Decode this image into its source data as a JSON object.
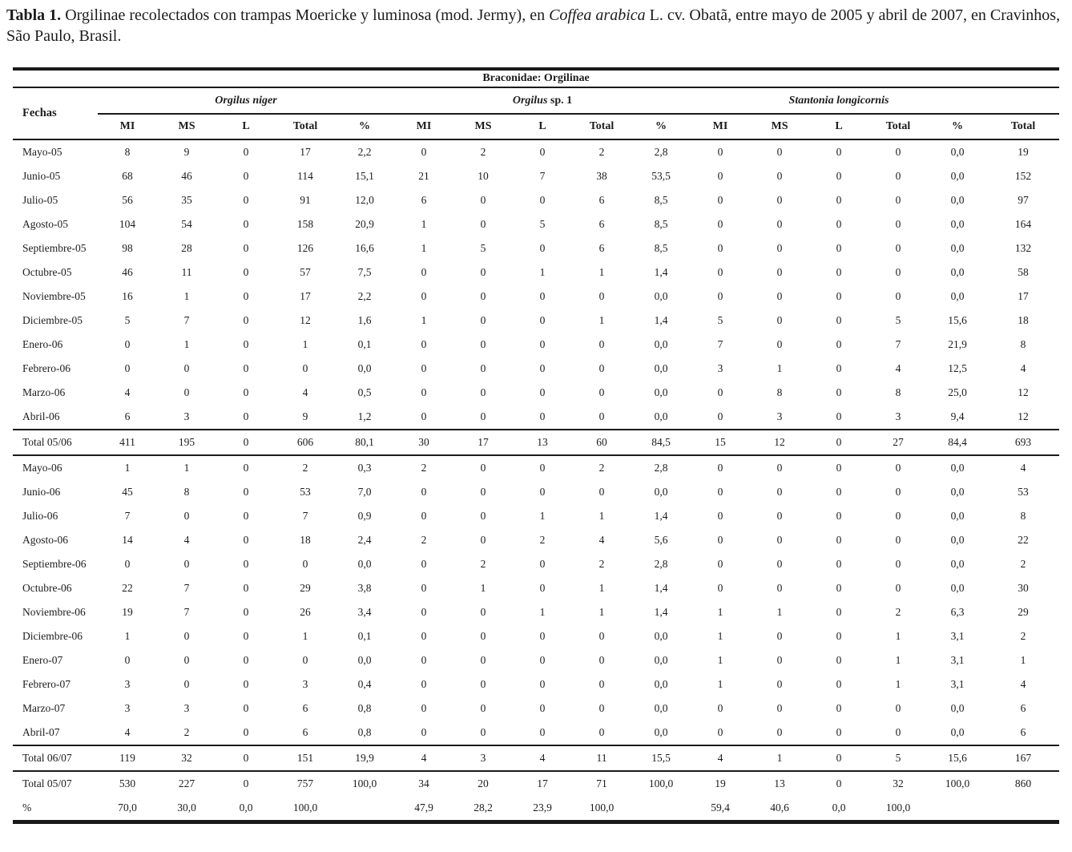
{
  "title": {
    "label": "Tabla 1.",
    "seg1": " Orgilinae recolectados con trampas Moericke y luminosa (mod. Jermy), en ",
    "italic": "Coffea arabica",
    "seg2": " L. cv. Obatã, entre mayo de 2005 y abril de 2007, en Cravinhos, São Paulo, Brasil."
  },
  "table": {
    "family_header": "Braconidae: Orgilinae",
    "fechas_header": "Fechas",
    "groups": [
      {
        "name_italic": "Orgilus niger",
        "name_roman": ""
      },
      {
        "name_italic": "Orgilus",
        "name_roman": " sp. 1"
      },
      {
        "name_italic": "Stantonia longicornis",
        "name_roman": ""
      }
    ],
    "subheaders": [
      "MI",
      "MS",
      "L",
      "Total",
      "%"
    ],
    "total_header": "Total",
    "rows": [
      {
        "label": "Mayo-05",
        "type": "data",
        "values": [
          "8",
          "9",
          "0",
          "17",
          "2,2",
          "0",
          "2",
          "0",
          "2",
          "2,8",
          "0",
          "0",
          "0",
          "0",
          "0,0",
          "19"
        ]
      },
      {
        "label": "Junio-05",
        "type": "data",
        "values": [
          "68",
          "46",
          "0",
          "114",
          "15,1",
          "21",
          "10",
          "7",
          "38",
          "53,5",
          "0",
          "0",
          "0",
          "0",
          "0,0",
          "152"
        ]
      },
      {
        "label": "Julio-05",
        "type": "data",
        "values": [
          "56",
          "35",
          "0",
          "91",
          "12,0",
          "6",
          "0",
          "0",
          "6",
          "8,5",
          "0",
          "0",
          "0",
          "0",
          "0,0",
          "97"
        ]
      },
      {
        "label": "Agosto-05",
        "type": "data",
        "values": [
          "104",
          "54",
          "0",
          "158",
          "20,9",
          "1",
          "0",
          "5",
          "6",
          "8,5",
          "0",
          "0",
          "0",
          "0",
          "0,0",
          "164"
        ]
      },
      {
        "label": "Septiembre-05",
        "type": "data",
        "values": [
          "98",
          "28",
          "0",
          "126",
          "16,6",
          "1",
          "5",
          "0",
          "6",
          "8,5",
          "0",
          "0",
          "0",
          "0",
          "0,0",
          "132"
        ]
      },
      {
        "label": "Octubre-05",
        "type": "data",
        "values": [
          "46",
          "11",
          "0",
          "57",
          "7,5",
          "0",
          "0",
          "1",
          "1",
          "1,4",
          "0",
          "0",
          "0",
          "0",
          "0,0",
          "58"
        ]
      },
      {
        "label": "Noviembre-05",
        "type": "data",
        "values": [
          "16",
          "1",
          "0",
          "17",
          "2,2",
          "0",
          "0",
          "0",
          "0",
          "0,0",
          "0",
          "0",
          "0",
          "0",
          "0,0",
          "17"
        ]
      },
      {
        "label": "Diciembre-05",
        "type": "data",
        "values": [
          "5",
          "7",
          "0",
          "12",
          "1,6",
          "1",
          "0",
          "0",
          "1",
          "1,4",
          "5",
          "0",
          "0",
          "5",
          "15,6",
          "18"
        ]
      },
      {
        "label": "Enero-06",
        "type": "data",
        "values": [
          "0",
          "1",
          "0",
          "1",
          "0,1",
          "0",
          "0",
          "0",
          "0",
          "0,0",
          "7",
          "0",
          "0",
          "7",
          "21,9",
          "8"
        ]
      },
      {
        "label": "Febrero-06",
        "type": "data",
        "values": [
          "0",
          "0",
          "0",
          "0",
          "0,0",
          "0",
          "0",
          "0",
          "0",
          "0,0",
          "3",
          "1",
          "0",
          "4",
          "12,5",
          "4"
        ]
      },
      {
        "label": "Marzo-06",
        "type": "data",
        "values": [
          "4",
          "0",
          "0",
          "4",
          "0,5",
          "0",
          "0",
          "0",
          "0",
          "0,0",
          "0",
          "8",
          "0",
          "8",
          "25,0",
          "12"
        ]
      },
      {
        "label": "Abril-06",
        "type": "data",
        "values": [
          "6",
          "3",
          "0",
          "9",
          "1,2",
          "0",
          "0",
          "0",
          "0",
          "0,0",
          "0",
          "3",
          "0",
          "3",
          "9,4",
          "12"
        ]
      },
      {
        "label": "Total 05/06",
        "type": "subtotal",
        "values": [
          "411",
          "195",
          "0",
          "606",
          "80,1",
          "30",
          "17",
          "13",
          "60",
          "84,5",
          "15",
          "12",
          "0",
          "27",
          "84,4",
          "693"
        ]
      },
      {
        "label": "Mayo-06",
        "type": "data",
        "values": [
          "1",
          "1",
          "0",
          "2",
          "0,3",
          "2",
          "0",
          "0",
          "2",
          "2,8",
          "0",
          "0",
          "0",
          "0",
          "0,0",
          "4"
        ]
      },
      {
        "label": "Junio-06",
        "type": "data",
        "values": [
          "45",
          "8",
          "0",
          "53",
          "7,0",
          "0",
          "0",
          "0",
          "0",
          "0,0",
          "0",
          "0",
          "0",
          "0",
          "0,0",
          "53"
        ]
      },
      {
        "label": "Julio-06",
        "type": "data",
        "values": [
          "7",
          "0",
          "0",
          "7",
          "0,9",
          "0",
          "0",
          "1",
          "1",
          "1,4",
          "0",
          "0",
          "0",
          "0",
          "0,0",
          "8"
        ]
      },
      {
        "label": "Agosto-06",
        "type": "data",
        "values": [
          "14",
          "4",
          "0",
          "18",
          "2,4",
          "2",
          "0",
          "2",
          "4",
          "5,6",
          "0",
          "0",
          "0",
          "0",
          "0,0",
          "22"
        ]
      },
      {
        "label": "Septiembre-06",
        "type": "data",
        "values": [
          "0",
          "0",
          "0",
          "0",
          "0,0",
          "0",
          "2",
          "0",
          "2",
          "2,8",
          "0",
          "0",
          "0",
          "0",
          "0,0",
          "2"
        ]
      },
      {
        "label": "Octubre-06",
        "type": "data",
        "values": [
          "22",
          "7",
          "0",
          "29",
          "3,8",
          "0",
          "1",
          "0",
          "1",
          "1,4",
          "0",
          "0",
          "0",
          "0",
          "0,0",
          "30"
        ]
      },
      {
        "label": "Noviembre-06",
        "type": "data",
        "values": [
          "19",
          "7",
          "0",
          "26",
          "3,4",
          "0",
          "0",
          "1",
          "1",
          "1,4",
          "1",
          "1",
          "0",
          "2",
          "6,3",
          "29"
        ]
      },
      {
        "label": "Diciembre-06",
        "type": "data",
        "values": [
          "1",
          "0",
          "0",
          "1",
          "0,1",
          "0",
          "0",
          "0",
          "0",
          "0,0",
          "1",
          "0",
          "0",
          "1",
          "3,1",
          "2"
        ]
      },
      {
        "label": "Enero-07",
        "type": "data",
        "values": [
          "0",
          "0",
          "0",
          "0",
          "0,0",
          "0",
          "0",
          "0",
          "0",
          "0,0",
          "1",
          "0",
          "0",
          "1",
          "3,1",
          "1"
        ]
      },
      {
        "label": "Febrero-07",
        "type": "data",
        "values": [
          "3",
          "0",
          "0",
          "3",
          "0,4",
          "0",
          "0",
          "0",
          "0",
          "0,0",
          "1",
          "0",
          "0",
          "1",
          "3,1",
          "4"
        ]
      },
      {
        "label": "Marzo-07",
        "type": "data",
        "values": [
          "3",
          "3",
          "0",
          "6",
          "0,8",
          "0",
          "0",
          "0",
          "0",
          "0,0",
          "0",
          "0",
          "0",
          "0",
          "0,0",
          "6"
        ]
      },
      {
        "label": "Abril-07",
        "type": "data",
        "values": [
          "4",
          "2",
          "0",
          "6",
          "0,8",
          "0",
          "0",
          "0",
          "0",
          "0,0",
          "0",
          "0",
          "0",
          "0",
          "0,0",
          "6"
        ]
      },
      {
        "label": "Total 06/07",
        "type": "subtotal",
        "values": [
          "119",
          "32",
          "0",
          "151",
          "19,9",
          "4",
          "3",
          "4",
          "11",
          "15,5",
          "4",
          "1",
          "0",
          "5",
          "15,6",
          "167"
        ]
      },
      {
        "label": "Total 05/07",
        "type": "grand",
        "values": [
          "530",
          "227",
          "0",
          "757",
          "100,0",
          "34",
          "20",
          "17",
          "71",
          "100,0",
          "19",
          "13",
          "0",
          "32",
          "100,0",
          "860"
        ]
      },
      {
        "label": "%",
        "type": "percent",
        "values": [
          "70,0",
          "30,0",
          "0,0",
          "100,0",
          "",
          "47,9",
          "28,2",
          "23,9",
          "100,0",
          "",
          "59,4",
          "40,6",
          "0,0",
          "100,0",
          "",
          ""
        ]
      }
    ]
  }
}
